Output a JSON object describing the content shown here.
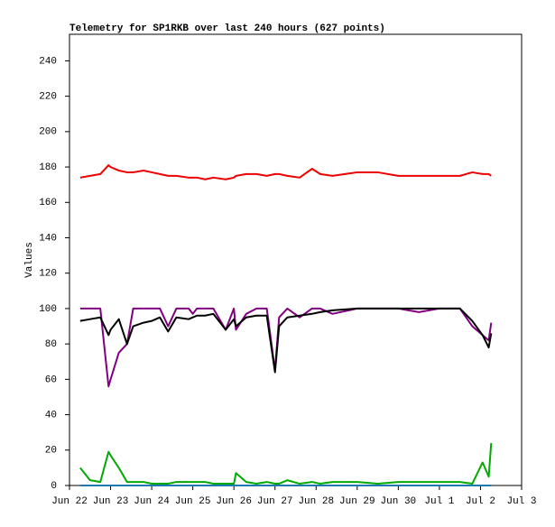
{
  "chart_data": {
    "type": "line",
    "title": "Telemetry for SP1RKB over last 240 hours (627 points)",
    "y_label": "Values",
    "x": [
      0.26,
      0.5,
      0.75,
      0.95,
      1.0,
      1.2,
      1.4,
      1.55,
      1.8,
      2.0,
      2.2,
      2.4,
      2.6,
      2.9,
      3.0,
      3.1,
      3.3,
      3.5,
      3.8,
      4.0,
      4.05,
      4.3,
      4.55,
      4.8,
      5.0,
      5.1,
      5.3,
      5.6,
      5.9,
      6.1,
      6.4,
      7.0,
      7.5,
      8.0,
      8.5,
      9.0,
      9.5,
      9.8,
      10.05,
      10.2,
      10.26
    ],
    "series": [
      {
        "color": "#ee0000",
        "values": [
          174,
          175,
          176,
          181,
          180,
          178,
          177,
          177,
          178,
          177,
          176,
          175,
          175,
          174,
          174,
          174,
          173,
          174,
          173,
          174,
          175,
          176,
          176,
          175,
          176,
          176,
          175,
          174,
          179,
          176,
          175,
          177,
          177,
          175,
          175,
          175,
          175,
          177,
          176,
          176,
          175
        ]
      },
      {
        "color": "#800080",
        "values": [
          100,
          100,
          100,
          56,
          60,
          75,
          80,
          100,
          100,
          100,
          100,
          90,
          100,
          100,
          97,
          100,
          100,
          100,
          88,
          100,
          88,
          97,
          100,
          100,
          65,
          95,
          100,
          95,
          100,
          100,
          97,
          100,
          100,
          100,
          98,
          100,
          100,
          90,
          85,
          82,
          92
        ]
      },
      {
        "color": "#000000",
        "values": [
          93,
          94,
          95,
          85,
          88,
          94,
          80,
          90,
          92,
          93,
          95,
          87,
          95,
          94,
          95,
          96,
          96,
          97,
          88,
          94,
          90,
          95,
          96,
          96,
          64,
          90,
          95,
          96,
          97,
          98,
          99,
          100,
          100,
          100,
          100,
          100,
          100,
          93,
          85,
          78,
          86
        ]
      },
      {
        "color": "#00aa00",
        "values": [
          10,
          3,
          2,
          19,
          17,
          10,
          2,
          2,
          2,
          1,
          1,
          1,
          2,
          2,
          2,
          2,
          2,
          1,
          1,
          1,
          7,
          2,
          1,
          2,
          1,
          1,
          3,
          1,
          2,
          1,
          2,
          2,
          1,
          2,
          2,
          2,
          2,
          1,
          13,
          5,
          24
        ]
      },
      {
        "color": "#1f77b4",
        "values": [
          0,
          0,
          0,
          0,
          0,
          0,
          0,
          0,
          0,
          0,
          0,
          0,
          0,
          0,
          0,
          0,
          0,
          0,
          0,
          0,
          0,
          0,
          0,
          0,
          0,
          0,
          0,
          0,
          0,
          0,
          0,
          0,
          0,
          0,
          0,
          0,
          0,
          0,
          0,
          0,
          0
        ]
      }
    ],
    "xlim": [
      0,
      11
    ],
    "xticks": [
      {
        "value": 0,
        "label": "Jun 22"
      },
      {
        "value": 1,
        "label": "Jun 23"
      },
      {
        "value": 2,
        "label": "Jun 24"
      },
      {
        "value": 3,
        "label": "Jun 25"
      },
      {
        "value": 4,
        "label": "Jun 26"
      },
      {
        "value": 5,
        "label": "Jun 27"
      },
      {
        "value": 6,
        "label": "Jun 28"
      },
      {
        "value": 7,
        "label": "Jun 29"
      },
      {
        "value": 8,
        "label": "Jun 30"
      },
      {
        "value": 9,
        "label": "Jul 1"
      },
      {
        "value": 10,
        "label": "Jul 2"
      },
      {
        "value": 11,
        "label": "Jul 3"
      }
    ],
    "ylim": [
      0,
      255
    ],
    "yticks": [
      0,
      20,
      40,
      60,
      80,
      100,
      120,
      140,
      160,
      180,
      200,
      220,
      240
    ],
    "grid": false
  }
}
